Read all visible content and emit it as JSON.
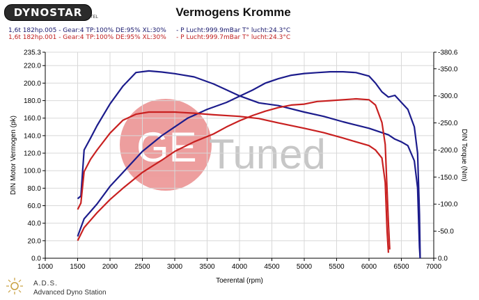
{
  "header": {
    "logo_text": "DYNOSTAR",
    "logo_small": "TEL",
    "title": "Vermogens Kromme",
    "run1": "1,6t 182hp.005 - Gear:4 TP:100% DE:95% XL:30%     - P Lucht:999.9mBar T° lucht:24.3°C",
    "run2": "1,6t 182hp.001 - Gear:4 TP:100% DE:95% XL:30%     - P Lucht:999.7mBar T° lucht:24.3°C"
  },
  "watermark": {
    "ge": "GE",
    "tuned": "Tuned"
  },
  "footer": {
    "ads": "A.D.S.",
    "ads_sub": "Advanced Dyno Station"
  },
  "colors": {
    "blue": "#1c1c8c",
    "red": "#c82020",
    "watermark": "#e05050"
  },
  "chart_data": {
    "type": "line",
    "title": "Vermogens Kromme",
    "xlabel": "Toerental (rpm)",
    "ylabel": "DIN Motor Vermogen (pk)",
    "y2label": "DIN Torque (Nm)",
    "xlim": [
      1000,
      7000
    ],
    "ylim": [
      0,
      235.3
    ],
    "y2lim": [
      0,
      380.6
    ],
    "xticks": [
      "1000",
      "1500",
      "2000",
      "2500",
      "3000",
      "3500",
      "4000",
      "4500",
      "5000",
      "5500",
      "6000",
      "6500",
      "7000"
    ],
    "yticks": [
      {
        "v": 0,
        "label": "0.0"
      },
      {
        "v": 20,
        "label": "20.0"
      },
      {
        "v": 40,
        "label": "40.0"
      },
      {
        "v": 60,
        "label": "60.0"
      },
      {
        "v": 80,
        "label": "80.0"
      },
      {
        "v": 100,
        "label": "100.0"
      },
      {
        "v": 120,
        "label": "120.0"
      },
      {
        "v": 140,
        "label": "140.0"
      },
      {
        "v": 160,
        "label": "160.0"
      },
      {
        "v": 180,
        "label": "180.0"
      },
      {
        "v": 200,
        "label": "200.0"
      },
      {
        "v": 220,
        "label": "220.0"
      },
      {
        "v": 235.3,
        "label": "235.3"
      }
    ],
    "y2ticks": [
      {
        "v": 0,
        "label": "0.0"
      },
      {
        "v": 50,
        "label": "-50.0"
      },
      {
        "v": 100,
        "label": "-100.0"
      },
      {
        "v": 150,
        "label": "-150.0"
      },
      {
        "v": 200,
        "label": "-200.0"
      },
      {
        "v": 250,
        "label": "-250.0"
      },
      {
        "v": 300,
        "label": "-300.0"
      },
      {
        "v": 350,
        "label": "-350.0"
      },
      {
        "v": 380.6,
        "label": "-380.6"
      }
    ],
    "grid": true,
    "series": [
      {
        "kind": "power",
        "color": "#1c1c8c",
        "points": [
          [
            1500,
            25
          ],
          [
            1600,
            45
          ],
          [
            1800,
            62
          ],
          [
            2000,
            82
          ],
          [
            2200,
            98
          ],
          [
            2500,
            122
          ],
          [
            2800,
            140
          ],
          [
            3000,
            150
          ],
          [
            3200,
            160
          ],
          [
            3500,
            170
          ],
          [
            3800,
            178
          ],
          [
            4000,
            185
          ],
          [
            4200,
            192
          ],
          [
            4400,
            200
          ],
          [
            4600,
            205
          ],
          [
            4800,
            209
          ],
          [
            5000,
            211
          ],
          [
            5200,
            212
          ],
          [
            5400,
            213
          ],
          [
            5600,
            213
          ],
          [
            5800,
            212
          ],
          [
            6000,
            208
          ],
          [
            6100,
            200
          ],
          [
            6200,
            190
          ],
          [
            6300,
            184
          ],
          [
            6400,
            186
          ],
          [
            6500,
            178
          ],
          [
            6600,
            170
          ],
          [
            6700,
            150
          ],
          [
            6750,
            120
          ],
          [
            6780,
            50
          ],
          [
            6790,
            0
          ]
        ]
      },
      {
        "kind": "torque",
        "color": "#1c1c8c",
        "points": [
          [
            1500,
            110
          ],
          [
            1550,
            115
          ],
          [
            1600,
            200
          ],
          [
            1700,
            222
          ],
          [
            1800,
            245
          ],
          [
            2000,
            285
          ],
          [
            2200,
            318
          ],
          [
            2400,
            343
          ],
          [
            2600,
            346
          ],
          [
            2800,
            344
          ],
          [
            3000,
            341
          ],
          [
            3300,
            335
          ],
          [
            3600,
            322
          ],
          [
            4000,
            300
          ],
          [
            4300,
            287
          ],
          [
            4600,
            282
          ],
          [
            5000,
            270
          ],
          [
            5300,
            262
          ],
          [
            5600,
            252
          ],
          [
            5800,
            246
          ],
          [
            6000,
            240
          ],
          [
            6200,
            232
          ],
          [
            6300,
            228
          ],
          [
            6400,
            220
          ],
          [
            6500,
            215
          ],
          [
            6600,
            208
          ],
          [
            6700,
            180
          ],
          [
            6750,
            130
          ],
          [
            6780,
            20
          ],
          [
            6790,
            0
          ]
        ]
      },
      {
        "kind": "power",
        "color": "#c82020",
        "points": [
          [
            1500,
            20
          ],
          [
            1600,
            35
          ],
          [
            1800,
            52
          ],
          [
            2000,
            67
          ],
          [
            2200,
            80
          ],
          [
            2500,
            98
          ],
          [
            2800,
            112
          ],
          [
            3000,
            122
          ],
          [
            3300,
            133
          ],
          [
            3600,
            142
          ],
          [
            3800,
            150
          ],
          [
            4000,
            157
          ],
          [
            4200,
            163
          ],
          [
            4400,
            168
          ],
          [
            4600,
            172
          ],
          [
            4800,
            175
          ],
          [
            5000,
            176
          ],
          [
            5200,
            179
          ],
          [
            5400,
            180
          ],
          [
            5600,
            181
          ],
          [
            5800,
            182
          ],
          [
            6000,
            181
          ],
          [
            6100,
            175
          ],
          [
            6200,
            155
          ],
          [
            6250,
            130
          ],
          [
            6300,
            40
          ],
          [
            6320,
            10
          ]
        ]
      },
      {
        "kind": "torque",
        "color": "#c82020",
        "points": [
          [
            1500,
            90
          ],
          [
            1550,
            102
          ],
          [
            1600,
            160
          ],
          [
            1700,
            183
          ],
          [
            1800,
            200
          ],
          [
            2000,
            231
          ],
          [
            2200,
            255
          ],
          [
            2400,
            266
          ],
          [
            2600,
            270
          ],
          [
            2800,
            270
          ],
          [
            3000,
            270
          ],
          [
            3300,
            268
          ],
          [
            3600,
            265
          ],
          [
            4000,
            262
          ],
          [
            4300,
            258
          ],
          [
            4600,
            250
          ],
          [
            5000,
            240
          ],
          [
            5300,
            232
          ],
          [
            5600,
            222
          ],
          [
            5800,
            215
          ],
          [
            6000,
            208
          ],
          [
            6100,
            200
          ],
          [
            6200,
            185
          ],
          [
            6250,
            140
          ],
          [
            6280,
            50
          ],
          [
            6300,
            10
          ]
        ]
      }
    ]
  }
}
